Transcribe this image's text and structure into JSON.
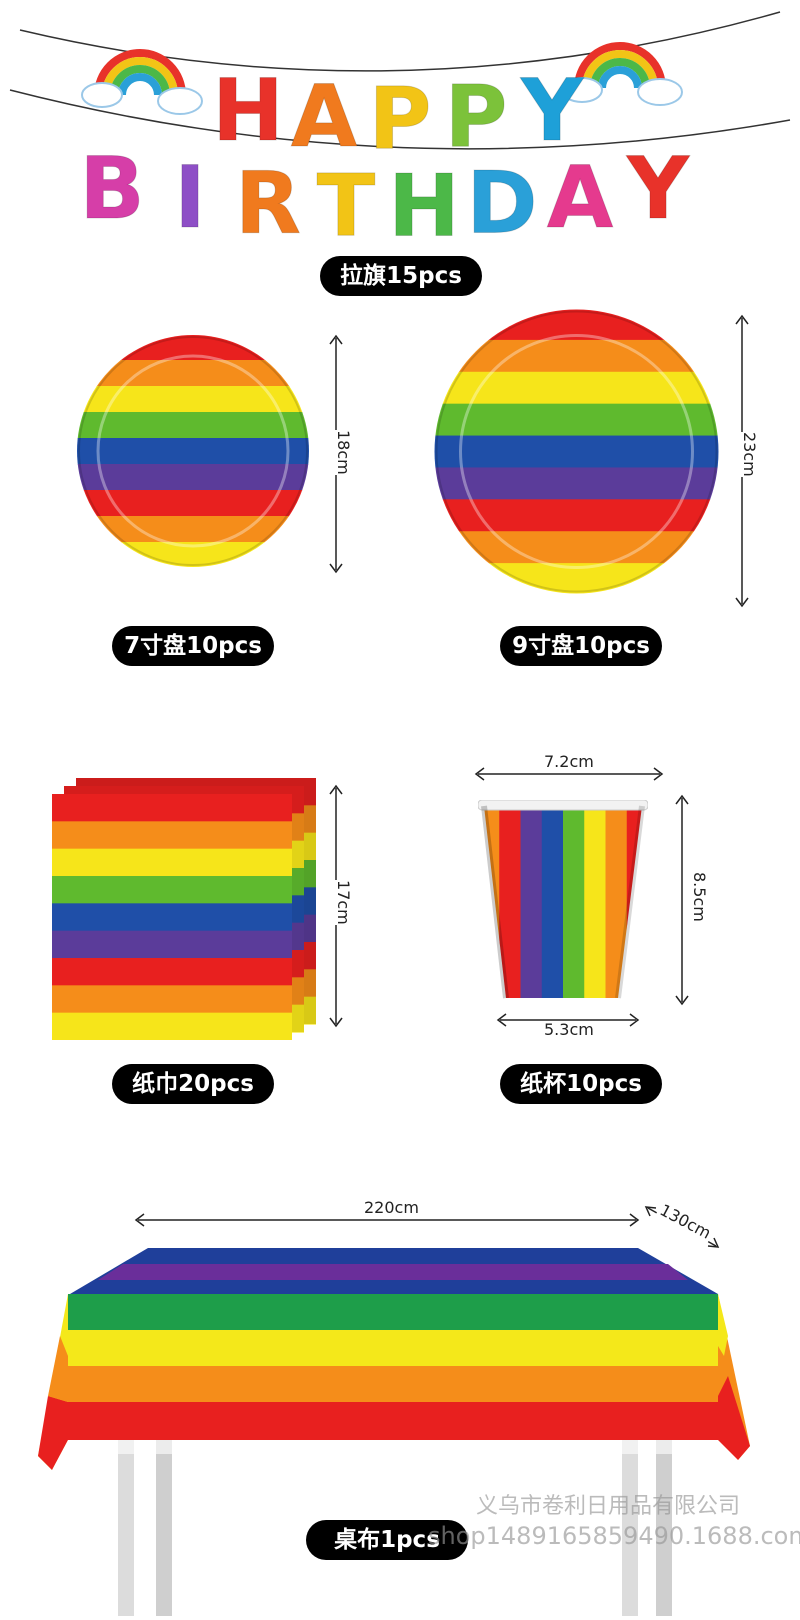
{
  "banner": {
    "row1_letters": [
      "H",
      "A",
      "P",
      "P",
      "Y"
    ],
    "row1_colors": [
      "#e8322a",
      "#f07a1e",
      "#f2c416",
      "#7cc23a",
      "#1ea0d8"
    ],
    "row2_letters": [
      "B",
      "I",
      "R",
      "T",
      "H",
      "D",
      "A",
      "Y"
    ],
    "row2_colors": [
      "#d63ea8",
      "#8e4fc6",
      "#f07a1e",
      "#f2c416",
      "#4cb848",
      "#2aa0d8",
      "#e53a8e",
      "#e8322a"
    ],
    "decoration": "rainbow-cloud-icon",
    "label": "拉旗15pcs"
  },
  "plate_small": {
    "size": "18cm",
    "label": "7寸盘10pcs"
  },
  "plate_large": {
    "size": "23cm",
    "label": "9寸盘10pcs"
  },
  "napkin": {
    "size": "17cm",
    "label": "纸巾20pcs"
  },
  "cup": {
    "top_width": "7.2cm",
    "height": "8.5cm",
    "bottom_width": "5.3cm",
    "label": "纸杯10pcs"
  },
  "tablecloth": {
    "length": "220cm",
    "width": "130cm",
    "label": "桌布1pcs"
  },
  "rainbow_colors": [
    "#e8201f",
    "#f58d1a",
    "#f6e51a",
    "#5fba2e",
    "#1f4fa8",
    "#5b3c9a"
  ],
  "watermark": {
    "company": "义乌市卷利日用品有限公司",
    "url": "shop1489165859490.1688.com"
  }
}
